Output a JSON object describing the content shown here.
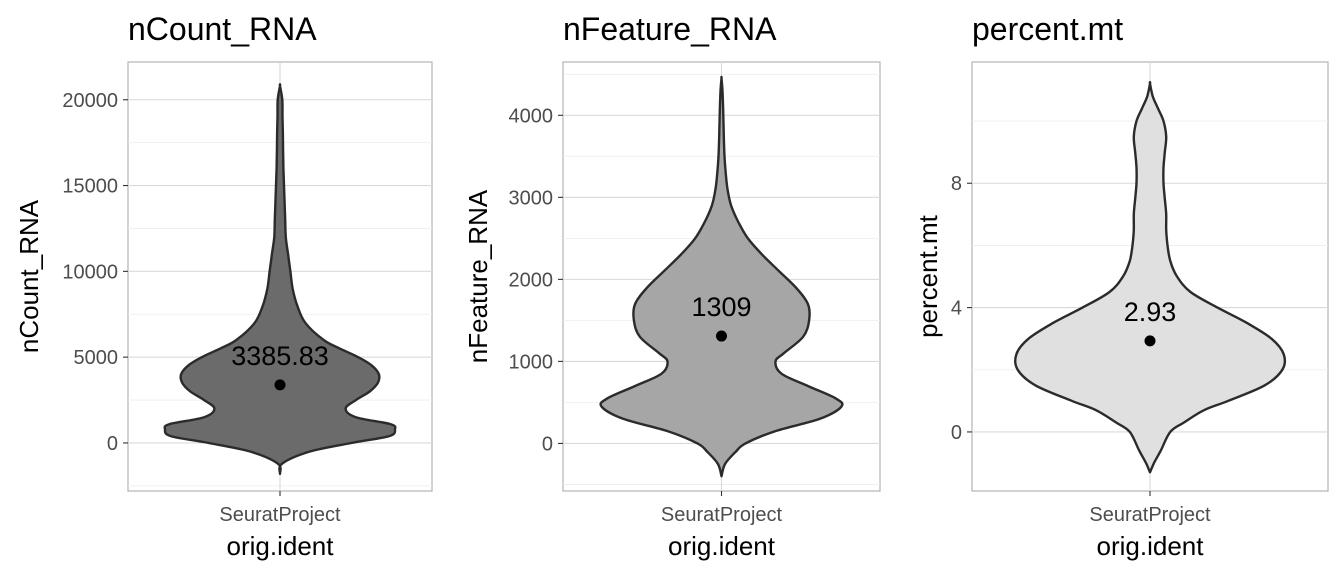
{
  "chart_data": [
    {
      "type": "violin",
      "title": "nCount_RNA",
      "xlabel": "orig.ident",
      "ylabel": "nCount_RNA",
      "categories": [
        "SeuratProject"
      ],
      "yticks": [
        "0",
        "5000",
        "10000",
        "15000",
        "20000"
      ],
      "ylim": [
        -2800,
        22200
      ],
      "fill": "#6b6b6b",
      "median_point": 3385.83,
      "annotation": "3385.83",
      "violin_profile": {
        "y": [
          -1800,
          -1200,
          -500,
          0,
          400,
          800,
          1100,
          1500,
          2000,
          2500,
          3000,
          3500,
          4000,
          4500,
          5000,
          5500,
          6000,
          7000,
          8000,
          9000,
          10000,
          11000,
          12000,
          13000,
          14000,
          15000,
          16000,
          17000,
          18000,
          19000,
          20000,
          20800
        ],
        "half_width": [
          0.0,
          0.02,
          0.26,
          0.62,
          0.95,
          1.0,
          0.96,
          0.66,
          0.57,
          0.66,
          0.78,
          0.85,
          0.86,
          0.8,
          0.68,
          0.52,
          0.38,
          0.22,
          0.15,
          0.11,
          0.09,
          0.07,
          0.05,
          0.045,
          0.04,
          0.035,
          0.03,
          0.027,
          0.025,
          0.022,
          0.02,
          0.0
        ]
      }
    },
    {
      "type": "violin",
      "title": "nFeature_RNA",
      "xlabel": "orig.ident",
      "ylabel": "nFeature_RNA",
      "categories": [
        "SeuratProject"
      ],
      "yticks": [
        "0",
        "1000",
        "2000",
        "3000",
        "4000"
      ],
      "ylim": [
        -580,
        4650
      ],
      "fill": "#a6a6a6",
      "median_point": 1309,
      "annotation": "1309",
      "violin_profile": {
        "y": [
          -400,
          -250,
          -100,
          0,
          150,
          300,
          450,
          550,
          700,
          850,
          1000,
          1100,
          1300,
          1500,
          1700,
          1900,
          2100,
          2300,
          2500,
          2700,
          2900,
          3100,
          3300,
          3500,
          3700,
          3900,
          4100,
          4300,
          4450
        ],
        "half_width": [
          0.0,
          0.03,
          0.12,
          0.2,
          0.45,
          0.82,
          1.0,
          0.95,
          0.72,
          0.5,
          0.45,
          0.52,
          0.68,
          0.73,
          0.72,
          0.62,
          0.48,
          0.34,
          0.22,
          0.14,
          0.08,
          0.05,
          0.035,
          0.025,
          0.02,
          0.017,
          0.013,
          0.008,
          0.0
        ]
      }
    },
    {
      "type": "violin",
      "title": "percent.mt",
      "xlabel": "orig.ident",
      "ylabel": "percent.mt",
      "categories": [
        "SeuratProject"
      ],
      "yticks": [
        "0",
        "4",
        "8"
      ],
      "ylim": [
        -1.9,
        11.9
      ],
      "fill": "#e0e0e0",
      "median_point": 2.93,
      "annotation": "2.93",
      "violin_profile": {
        "y": [
          -1.3,
          -1.0,
          -0.6,
          0.0,
          0.3,
          0.7,
          1.0,
          1.5,
          2.0,
          2.5,
          3.0,
          3.5,
          4.0,
          4.5,
          5.0,
          5.5,
          6.0,
          6.5,
          7.0,
          7.5,
          8.0,
          8.5,
          9.0,
          9.5,
          10.0,
          10.4,
          10.8,
          11.2
        ],
        "half_width": [
          0.0,
          0.03,
          0.08,
          0.15,
          0.25,
          0.4,
          0.58,
          0.85,
          0.98,
          0.99,
          0.9,
          0.72,
          0.5,
          0.3,
          0.2,
          0.15,
          0.13,
          0.12,
          0.12,
          0.11,
          0.1,
          0.1,
          0.11,
          0.12,
          0.1,
          0.06,
          0.02,
          0.0
        ]
      }
    }
  ]
}
